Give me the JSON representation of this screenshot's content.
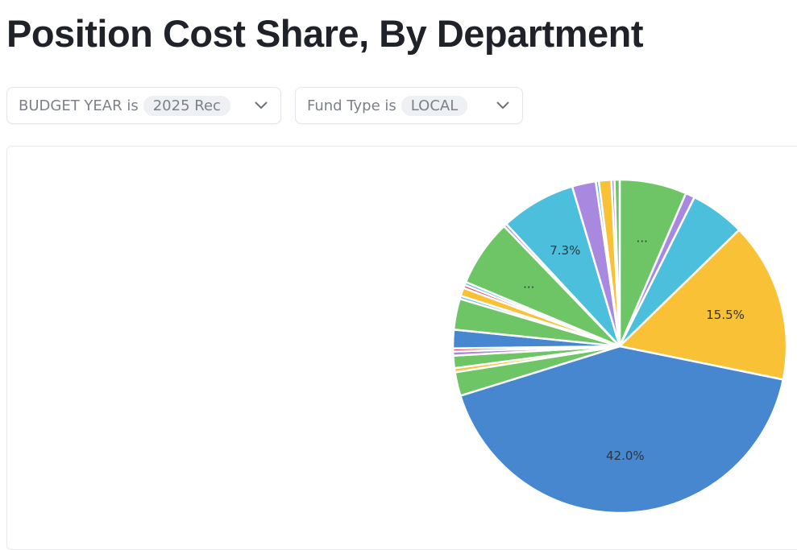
{
  "header": {
    "title": "Position Cost Share, By Department"
  },
  "filters": [
    {
      "label": "BUDGET YEAR is",
      "value": "2025 Rec"
    },
    {
      "label": "Fund Type is",
      "value": "LOCAL"
    }
  ],
  "chart_data": {
    "type": "pie",
    "values": [
      6.5,
      0.9,
      5.3,
      15.5,
      42.0,
      2.3,
      0.4,
      1.2,
      0.4,
      0.3,
      1.8,
      3.0,
      0.3,
      0.8,
      0.3,
      0.3,
      6.5,
      0.3,
      7.3,
      2.3,
      0.3,
      1.2,
      0.3,
      0.5
    ],
    "value_labels": [
      "...",
      null,
      null,
      "15.5%",
      "42.0%",
      null,
      null,
      null,
      null,
      null,
      null,
      null,
      null,
      null,
      null,
      null,
      "...",
      null,
      "7.3%",
      null,
      null,
      null,
      null,
      null
    ],
    "colors": [
      "#6ec565",
      "#a989e0",
      "#4bbfdc",
      "#f9c136",
      "#4787cf",
      "#6ec565",
      "#f9c136",
      "#6ec565",
      "#a989e0",
      "#e6476a",
      "#4787cf",
      "#6ec565",
      "#4bbfdc",
      "#f9c136",
      "#e6476a",
      "#4bbfdc",
      "#6ec565",
      "#a989e0",
      "#4bbfdc",
      "#a989e0",
      "#4bbfdc",
      "#f9c136",
      "#a989e0",
      "#6ec565"
    ]
  }
}
